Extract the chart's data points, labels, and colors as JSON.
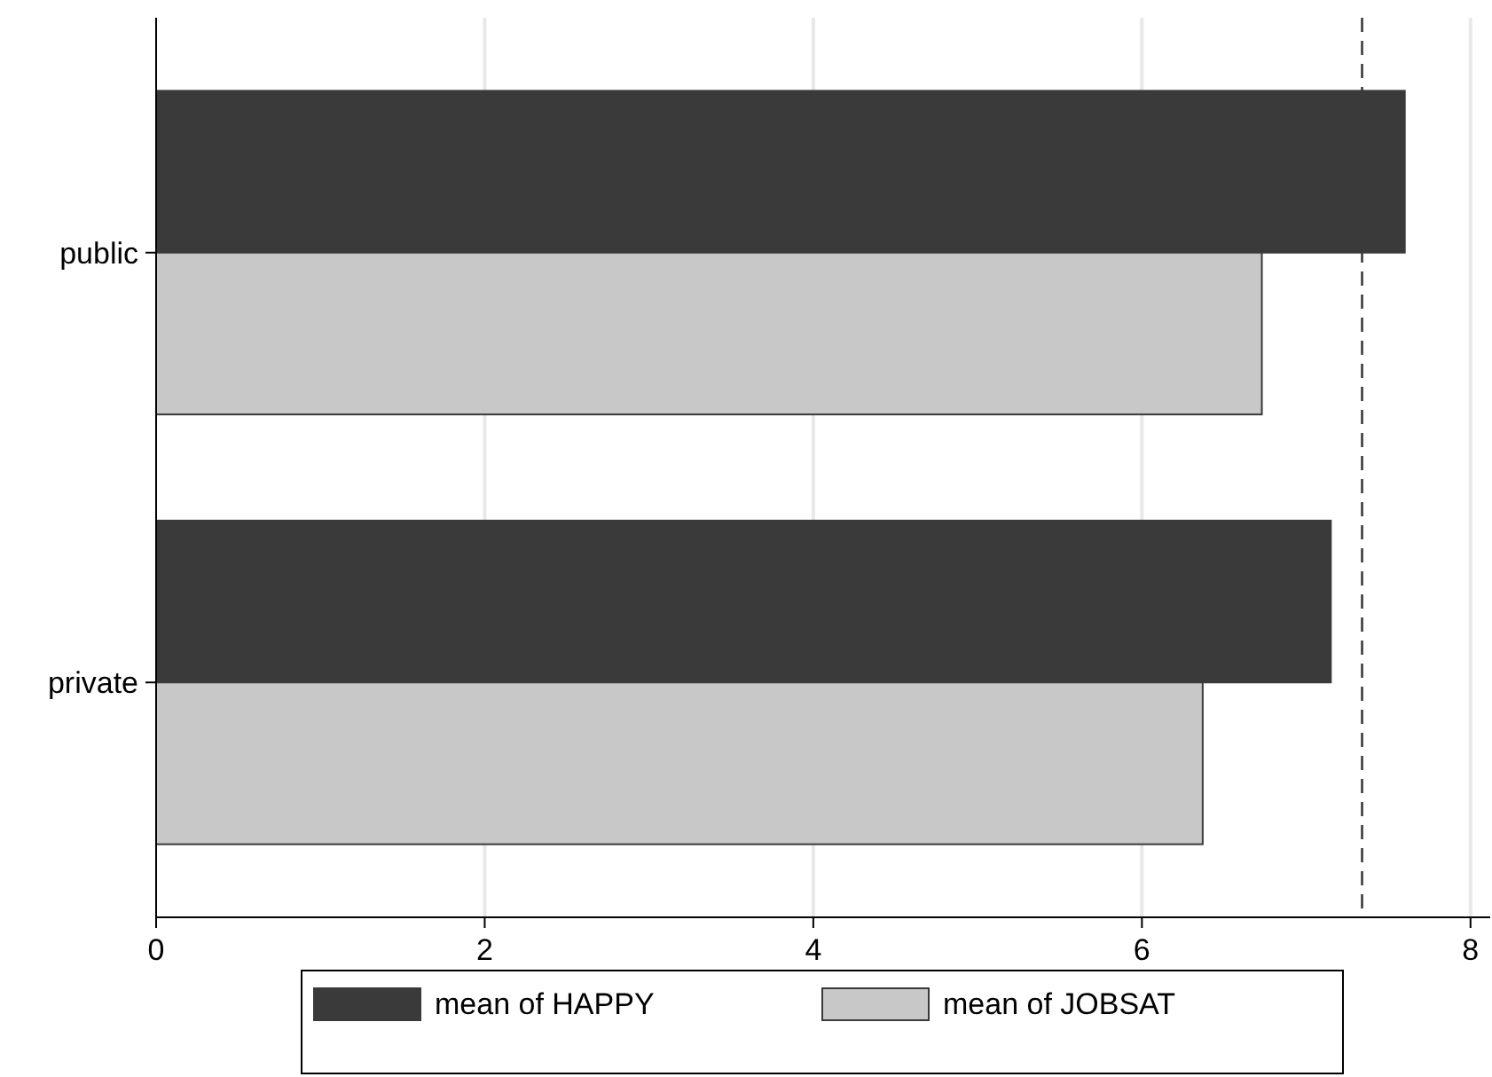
{
  "chart_data": {
    "type": "bar",
    "orientation": "horizontal",
    "categories": [
      "public",
      "private"
    ],
    "series": [
      {
        "name": "mean of HAPPY",
        "color": "#3a3a3a",
        "values": [
          7.6,
          7.15
        ]
      },
      {
        "name": "mean of JOBSAT",
        "color": "#c8c8c8",
        "values": [
          6.73,
          6.37
        ]
      }
    ],
    "xlim": [
      0,
      8.12
    ],
    "xticks": [
      0,
      2,
      4,
      6,
      8
    ],
    "grid": "x",
    "legend": "bottom",
    "ref_lines": [
      {
        "axis": "x",
        "value": 7.34,
        "line_style": "dashed"
      }
    ]
  }
}
